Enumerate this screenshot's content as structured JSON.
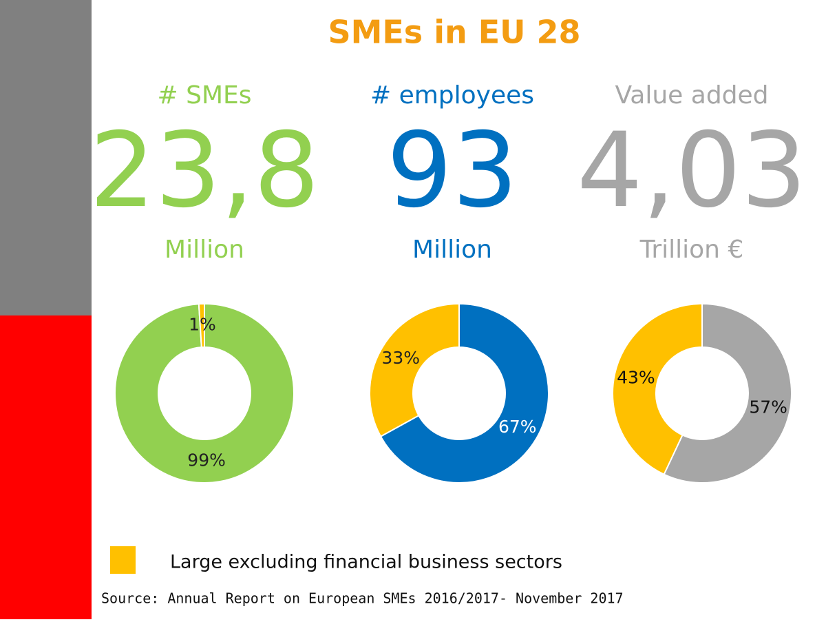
{
  "title": "SMEs in EU 28",
  "chart_data": [
    {
      "type": "donut",
      "title": "# SMEs",
      "figure": "23,8",
      "unit": "Million",
      "text_color": "#92d050",
      "values": [
        99,
        1
      ],
      "value_labels": [
        "99%",
        "1%"
      ],
      "colors": [
        "#92d050",
        "#ffc000"
      ],
      "label_colors": [
        "#222222",
        "#222222"
      ]
    },
    {
      "type": "donut",
      "title": "# employees",
      "figure": "93",
      "unit": "Million",
      "text_color": "#0070c0",
      "values": [
        67,
        33
      ],
      "value_labels": [
        "67%",
        "33%"
      ],
      "colors": [
        "#0070c0",
        "#ffc000"
      ],
      "label_colors": [
        "#ffffff",
        "#222222"
      ]
    },
    {
      "type": "donut",
      "title": "Value added",
      "figure": "4,03",
      "unit": "Trillion €",
      "text_color": "#a6a6a6",
      "values": [
        57,
        43
      ],
      "value_labels": [
        "57%",
        "43%"
      ],
      "colors": [
        "#a6a6a6",
        "#ffc000"
      ],
      "label_colors": [
        "#111111",
        "#111111"
      ]
    }
  ],
  "legend": {
    "label": "Large excluding financial business sectors",
    "color": "#ffc000"
  },
  "source": "Source: Annual Report on European SMEs 2016/2017- November 2017"
}
